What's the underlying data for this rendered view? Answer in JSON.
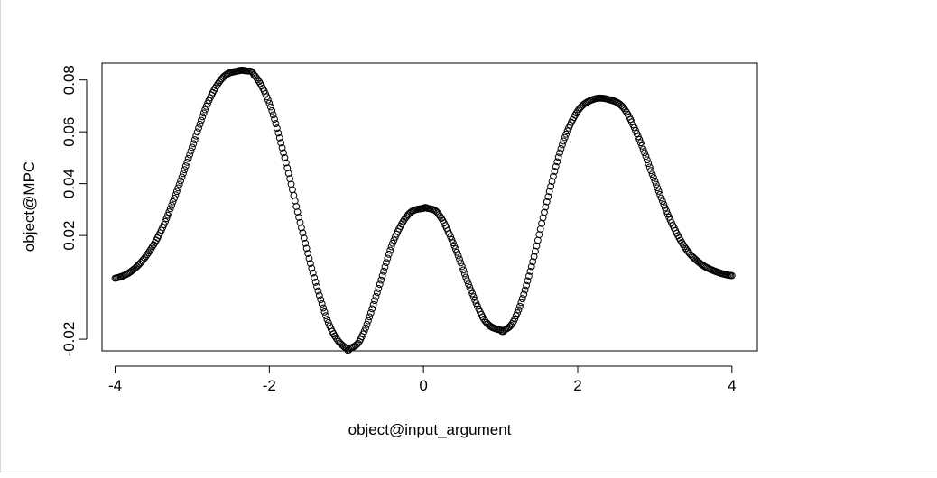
{
  "chart_data": {
    "type": "scatter",
    "title": "",
    "xlabel": "object@input_argument",
    "ylabel": "object@MPC",
    "xlim": [
      -4.17,
      4.33
    ],
    "ylim": [
      -0.0245,
      0.0865
    ],
    "x_ticks": [
      -4,
      -2,
      0,
      2,
      4
    ],
    "x_tick_labels": [
      "-4",
      "-2",
      "0",
      "2",
      "4"
    ],
    "y_ticks": [
      -0.02,
      0.02,
      0.04,
      0.06,
      0.08
    ],
    "y_tick_labels": [
      "-0.02",
      "0.02",
      "0.04",
      "0.06",
      "0.08"
    ],
    "grid": false,
    "marker": "open-circle",
    "series": [
      {
        "x": [
          -4.0,
          -3.8,
          -3.6,
          -3.4,
          -3.2,
          -3.0,
          -2.8,
          -2.6,
          -2.4,
          -2.3,
          -2.2,
          -2.0,
          -1.8,
          -1.6,
          -1.4,
          -1.2,
          -1.0,
          -0.95,
          -0.8,
          -0.6,
          -0.4,
          -0.2,
          0.0,
          0.05,
          0.2,
          0.4,
          0.6,
          0.8,
          1.0,
          1.05,
          1.2,
          1.4,
          1.6,
          1.8,
          2.0,
          2.2,
          2.4,
          2.6,
          2.8,
          3.0,
          3.2,
          3.4,
          3.6,
          3.8,
          4.0
        ],
        "y": [
          0.0035,
          0.006,
          0.012,
          0.022,
          0.037,
          0.054,
          0.071,
          0.081,
          0.0835,
          0.0835,
          0.082,
          0.071,
          0.05,
          0.025,
          0.002,
          -0.016,
          -0.0235,
          -0.0235,
          -0.019,
          -0.002,
          0.017,
          0.028,
          0.0305,
          0.0305,
          0.028,
          0.016,
          0.0,
          -0.013,
          -0.0165,
          -0.0165,
          -0.011,
          0.008,
          0.033,
          0.055,
          0.068,
          0.0725,
          0.0725,
          0.069,
          0.057,
          0.041,
          0.026,
          0.015,
          0.009,
          0.006,
          0.0045
        ]
      }
    ]
  }
}
